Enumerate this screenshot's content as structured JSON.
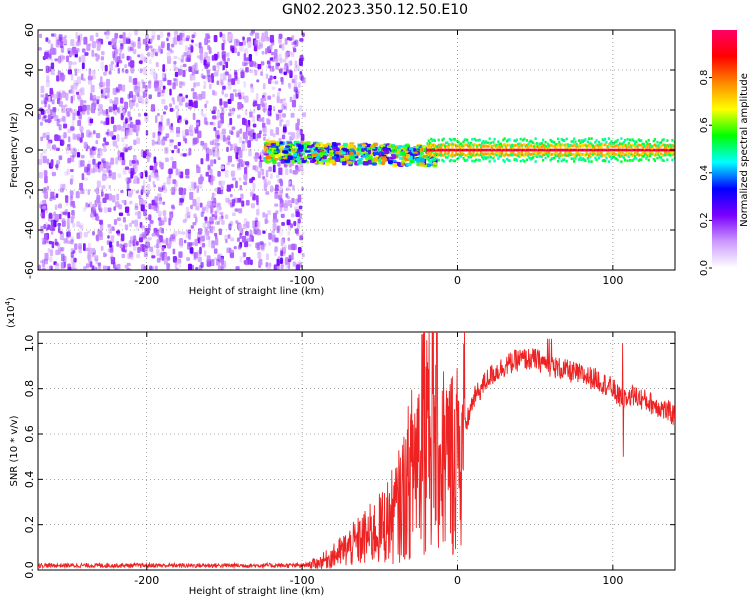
{
  "title": "GN02.2023.350.12.50.E10",
  "chart_data": [
    {
      "type": "heatmap",
      "title": "GN02.2023.350.12.50.E10",
      "xlabel": "Height of straight line (km)",
      "ylabel": "Frequency (Hz)",
      "xlim": [
        -270,
        140
      ],
      "ylim": [
        -60,
        60
      ],
      "xticks": [
        -200,
        -100,
        0,
        100
      ],
      "xtick_labels": [
        "-200",
        "-100",
        "0",
        "100"
      ],
      "yticks": [
        -60,
        -40,
        -20,
        0,
        20,
        40,
        60
      ],
      "ytick_labels": [
        "-60",
        "-40",
        "-20",
        "0",
        "20",
        "40",
        "60"
      ],
      "colorbar": {
        "label": "Normalized spectral amplitude",
        "range": [
          0,
          1
        ],
        "ticks": [
          0,
          0.2,
          0.4,
          0.6,
          0.8
        ],
        "tick_labels": [
          "0.0",
          "0.2",
          "0.4",
          "0.6",
          "0.8"
        ],
        "colormap": [
          "#ffffff",
          "#cc99ff",
          "#7a00ff",
          "#0000ff",
          "#00ffff",
          "#00ff00",
          "#ffff00",
          "#ff8800",
          "#ff0000",
          "#ff0066"
        ]
      },
      "regions": [
        {
          "name": "noise",
          "x_range": [
            -270,
            -100
          ],
          "freq_range": [
            -60,
            60
          ],
          "amplitude_range": [
            0.05,
            0.2
          ]
        },
        {
          "name": "trail",
          "x_range": [
            -125,
            -15
          ],
          "freq_center": -2,
          "amplitude_range": [
            0.2,
            0.8
          ]
        },
        {
          "name": "strong-band",
          "x_range": [
            -20,
            140
          ],
          "freq_center": 0,
          "amplitude_range": [
            0.5,
            0.95
          ]
        }
      ],
      "grid": true
    },
    {
      "type": "line",
      "xlabel": "Height of straight line (km)",
      "ylabel": "SNR (10 * v/v)",
      "y_multiplier_label": "(x10",
      "y_multiplier_exp": "4",
      "xlim": [
        -270,
        140
      ],
      "ylim": [
        0,
        1.05
      ],
      "xticks": [
        -200,
        -100,
        0,
        100
      ],
      "xtick_labels": [
        "-200",
        "-100",
        "0",
        "100"
      ],
      "yticks": [
        0,
        0.2,
        0.4,
        0.6,
        0.8,
        1.0
      ],
      "ytick_labels": [
        "0.0",
        "0.2",
        "0.4",
        "0.6",
        "0.8",
        "1.0"
      ],
      "color": "#ee2222",
      "grid": true,
      "x": [
        -270,
        -200,
        -120,
        -100,
        -90,
        -80,
        -70,
        -60,
        -50,
        -40,
        -35,
        -30,
        -25,
        -20,
        -15,
        -10,
        -5,
        0,
        10,
        20,
        30,
        40,
        50,
        60,
        70,
        80,
        90,
        100,
        105,
        110,
        120,
        130,
        140
      ],
      "y": [
        0.02,
        0.02,
        0.02,
        0.02,
        0.03,
        0.06,
        0.1,
        0.14,
        0.18,
        0.25,
        0.32,
        0.42,
        0.55,
        0.7,
        0.62,
        0.5,
        0.48,
        0.5,
        0.75,
        0.85,
        0.9,
        0.93,
        0.93,
        0.9,
        0.88,
        0.86,
        0.84,
        0.8,
        0.75,
        0.78,
        0.75,
        0.72,
        0.68
      ],
      "notes": "spikes to ~1.05 near x=-20 and x=60; dip to ~0.5 near x=105"
    }
  ]
}
